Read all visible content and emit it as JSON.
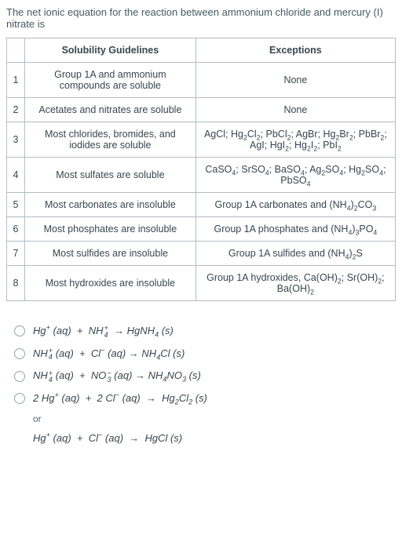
{
  "prompt": "The net ionic equation for the reaction between ammonium chloride and mercury (I) nitrate is",
  "table": {
    "headers": [
      "",
      "Solubility Guidelines",
      "Exceptions"
    ],
    "rows": [
      {
        "num": "1",
        "guideline": "Group 1A and ammonium compounds are soluble",
        "exception": "None"
      },
      {
        "num": "2",
        "guideline": "Acetates and nitrates are soluble",
        "exception": "None"
      },
      {
        "num": "3",
        "guideline": "Most chlorides, bromides, and iodides are soluble",
        "exception_html": "AgCl; Hg<sub>2</sub>Cl<sub>2</sub>; PbCl<sub>2</sub>; AgBr; Hg<sub>2</sub>Br<sub>2</sub>; PbBr<sub>2</sub>;<br>AgI; HgI<sub>2</sub>; Hg<sub>2</sub>I<sub>2</sub>; PbI<sub>2</sub>"
      },
      {
        "num": "4",
        "guideline": "Most sulfates are soluble",
        "exception_html": "CaSO<sub>4</sub>; SrSO<sub>4</sub>; BaSO<sub>4</sub>; Ag<sub>2</sub>SO<sub>4</sub>; Hg<sub>2</sub>SO<sub>4</sub>;<br>PbSO<sub>4</sub>"
      },
      {
        "num": "5",
        "guideline": "Most carbonates are insoluble",
        "exception_html": "Group 1A carbonates and (NH<sub>4</sub>)<sub>2</sub>CO<sub>3</sub>"
      },
      {
        "num": "6",
        "guideline": "Most phosphates are insoluble",
        "exception_html": "Group 1A phosphates and (NH<sub>4</sub>)<sub>3</sub>PO<sub>4</sub>"
      },
      {
        "num": "7",
        "guideline": "Most sulfides are insoluble",
        "exception_html": "Group 1A sulfides and (NH<sub>4</sub>)<sub>2</sub>S"
      },
      {
        "num": "8",
        "guideline": "Most hydroxides are insoluble",
        "exception_html": "Group 1A hydroxides, Ca(OH)<sub>2</sub>; Sr(OH)<sub>2</sub>;<br>Ba(OH)<sub>2</sub>"
      }
    ]
  },
  "options": [
    {
      "html": "Hg<sup>+</sup> (aq) &nbsp;+&nbsp; NH<span class='supsub'><span>+</span><span>4</span></span> &nbsp;→ HgNH<sub>4</sub> (s)"
    },
    {
      "html": "NH<span class='supsub'><span>+</span><span>4</span></span> (aq) &nbsp;+&nbsp; Cl<sup>−</sup> (aq) → NH<sub>4</sub>Cl (s)"
    },
    {
      "html": "NH<span class='supsub'><span>+</span><span>4</span></span> (aq) &nbsp;+&nbsp; NO<span class='supsub'><span>−</span><span>3</span></span> (aq) → NH<sub>4</sub>NO<sub>3</sub> (s)"
    },
    {
      "html": "2 Hg<sup>+</sup> (aq) &nbsp;+&nbsp; 2 Cl<sup>−</sup> (aq) &nbsp;→&nbsp; Hg<sub>2</sub>Cl<sub>2</sub> (s)"
    }
  ],
  "or_label": "or",
  "sub_option_html": "Hg<sup>+</sup> (aq) &nbsp;+&nbsp; Cl<sup>−</sup> (aq) &nbsp;→&nbsp; HgCl (s)"
}
